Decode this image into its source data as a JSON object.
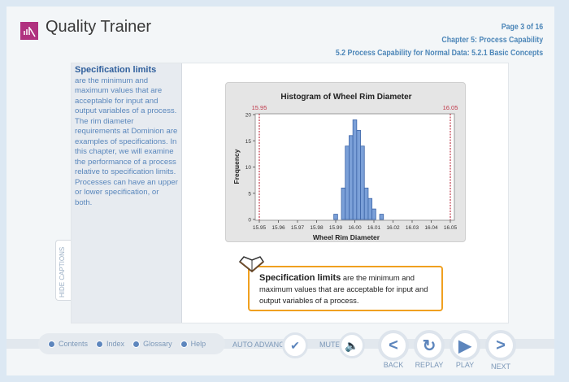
{
  "header": {
    "app_title": "Quality Trainer",
    "page": "Page 3 of 16",
    "chapter": "Chapter 5: Process Capability",
    "section": "5.2 Process Capability for Normal Data: 5.2.1 Basic Concepts"
  },
  "captions": {
    "term": "Specification limits",
    "body": "are the minimum and maximum values that are acceptable for input and output variables of a process. The rim diameter requirements at Dominion are examples of specifications. In this chapter, we will examine the performance of a process relative to specification limits. Processes can have an upper or lower specification, or both.",
    "hide_label": "HIDE CAPTIONS"
  },
  "callout": {
    "term": "Specification limits",
    "body": " are the minimum and maximum values that are acceptable for input and output variables of a process."
  },
  "nav": {
    "links": [
      "Contents",
      "Index",
      "Glossary",
      "Help"
    ],
    "auto_advance": "AUTO ADVANCE",
    "mute": "MUTE",
    "back": "BACK",
    "replay": "REPLAY",
    "play": "PLAY",
    "next": "NEXT"
  },
  "colors": {
    "accent": "#5d86bd",
    "logo": "#b0317f",
    "callout_border": "#f0a020",
    "spec_line": "#c0394a",
    "bar": "#7ba0d8"
  },
  "chart_data": {
    "type": "bar",
    "title": "Histogram of Wheel Rim Diameter",
    "xlabel": "Wheel Rim Diameter",
    "ylabel": "Frequency",
    "xlim": [
      15.95,
      16.05
    ],
    "ylim": [
      0,
      20
    ],
    "xticks": [
      "15.95",
      "15.96",
      "15.97",
      "15.98",
      "15.99",
      "16.00",
      "16.01",
      "16.02",
      "16.03",
      "16.04",
      "16.05"
    ],
    "yticks": [
      "0",
      "5",
      "10",
      "15",
      "20"
    ],
    "bin_centers": [
      15.99,
      15.994,
      15.996,
      15.998,
      16.0,
      16.002,
      16.004,
      16.006,
      16.008,
      16.01,
      16.014
    ],
    "bin_width": 0.002,
    "values": [
      1,
      6,
      14,
      16,
      19,
      17,
      14,
      6,
      4,
      2,
      1
    ],
    "reference_lines": [
      {
        "label": "15.95",
        "x": 15.95
      },
      {
        "label": "16.05",
        "x": 16.05
      }
    ]
  }
}
